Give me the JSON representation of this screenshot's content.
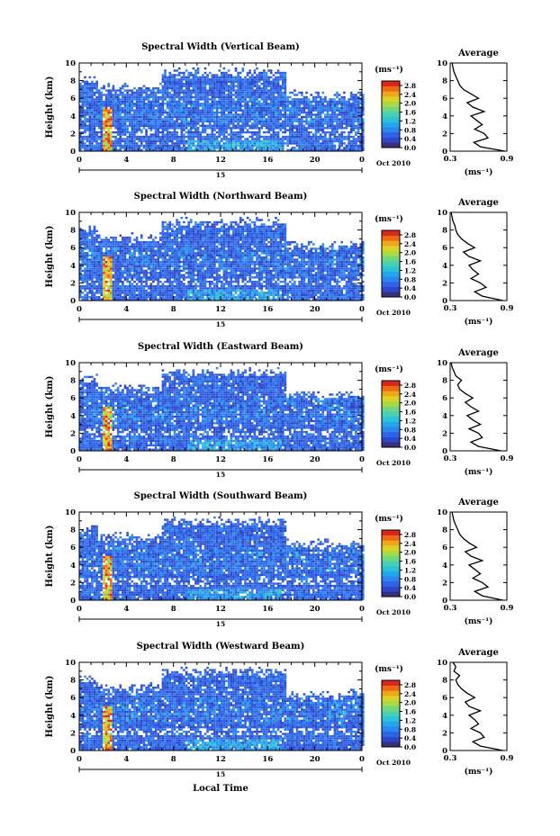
{
  "colors": {
    "colorbar": [
      "#3a2f7a",
      "#2e46c8",
      "#2f62e6",
      "#2c86ee",
      "#26a6ea",
      "#2ec2d6",
      "#48cfb4",
      "#72d67e",
      "#a8da48",
      "#dcd226",
      "#f0a61a",
      "#ec6a14",
      "#d8281c"
    ]
  },
  "chart_data": [
    {
      "type": "heatmap",
      "title": "Spectral Width (Vertical Beam)",
      "ylabel": "Height (km)",
      "xticks": [
        "0",
        "4",
        "8",
        "12",
        "16",
        "20",
        "0"
      ],
      "yticks": [
        "0",
        "2",
        "4",
        "6",
        "8",
        "10"
      ],
      "xlim": [
        0,
        24
      ],
      "ylim": [
        0,
        10
      ],
      "date_left": "15",
      "date_right": "Oct 2010",
      "colorbar": {
        "unit": "(ms⁻¹)",
        "ticks": [
          "0.0",
          "0.4",
          "0.8",
          "1.2",
          "1.6",
          "2.0",
          "2.4",
          "2.8"
        ],
        "range": [
          0,
          3.0
        ]
      },
      "profile": {
        "title": "Average",
        "xlabel": "(ms⁻¹)",
        "xticks": [
          "0.3",
          "0.9"
        ],
        "xlim": [
          0.3,
          0.9
        ],
        "ylim": [
          0,
          10
        ],
        "y": [
          0.0,
          0.5,
          1.0,
          1.5,
          2.0,
          2.5,
          3.0,
          3.5,
          4.0,
          4.5,
          5.0,
          5.5,
          6.0,
          6.5,
          7.0,
          7.5,
          8.0,
          8.5,
          9.0,
          9.5,
          10.0
        ],
        "x": [
          0.88,
          0.62,
          0.55,
          0.7,
          0.66,
          0.56,
          0.64,
          0.58,
          0.52,
          0.66,
          0.54,
          0.48,
          0.6,
          0.52,
          0.44,
          0.4,
          0.38,
          0.36,
          0.34,
          0.33,
          0.32
        ]
      }
    },
    {
      "type": "heatmap",
      "title": "Spectral Width (Northward Beam)",
      "ylabel": "Height (km)",
      "xticks": [
        "0",
        "4",
        "8",
        "12",
        "16",
        "20",
        "0"
      ],
      "yticks": [
        "0",
        "2",
        "4",
        "6",
        "8",
        "10"
      ],
      "xlim": [
        0,
        24
      ],
      "ylim": [
        0,
        10
      ],
      "date_left": "15",
      "date_right": "Oct 2010",
      "colorbar": {
        "unit": "(ms⁻¹)",
        "ticks": [
          "0.0",
          "0.4",
          "0.8",
          "1.2",
          "1.6",
          "2.0",
          "2.4",
          "2.8"
        ],
        "range": [
          0,
          3.0
        ]
      },
      "profile": {
        "title": "Average",
        "xlabel": "(ms⁻¹)",
        "xticks": [
          "0.3",
          "0.9"
        ],
        "xlim": [
          0.3,
          0.9
        ],
        "ylim": [
          0,
          10
        ],
        "y": [
          0.0,
          0.5,
          1.0,
          1.5,
          2.0,
          2.5,
          3.0,
          3.5,
          4.0,
          4.5,
          5.0,
          5.5,
          6.0,
          6.5,
          7.0,
          7.5,
          8.0,
          8.5,
          9.0,
          9.5,
          10.0
        ],
        "x": [
          0.86,
          0.64,
          0.56,
          0.68,
          0.62,
          0.52,
          0.6,
          0.54,
          0.5,
          0.62,
          0.5,
          0.44,
          0.56,
          0.48,
          0.42,
          0.38,
          0.36,
          0.35,
          0.33,
          0.32,
          0.31
        ]
      }
    },
    {
      "type": "heatmap",
      "title": "Spectral Width (Eastward Beam)",
      "ylabel": "Height (km)",
      "xticks": [
        "0",
        "4",
        "8",
        "12",
        "16",
        "20",
        "0"
      ],
      "yticks": [
        "0",
        "2",
        "4",
        "6",
        "8",
        "10"
      ],
      "xlim": [
        0,
        24
      ],
      "ylim": [
        0,
        10
      ],
      "date_left": "15",
      "date_right": "Oct 2010",
      "colorbar": {
        "unit": "(ms⁻¹)",
        "ticks": [
          "0.0",
          "0.4",
          "0.8",
          "1.2",
          "1.6",
          "2.0",
          "2.4",
          "2.8"
        ],
        "range": [
          0,
          3.0
        ]
      },
      "profile": {
        "title": "Average",
        "xlabel": "(ms⁻¹)",
        "xticks": [
          "0.3",
          "0.9"
        ],
        "xlim": [
          0.3,
          0.9
        ],
        "ylim": [
          0,
          10
        ],
        "y": [
          0.0,
          0.5,
          1.0,
          1.5,
          2.0,
          2.5,
          3.0,
          3.5,
          4.0,
          4.5,
          5.0,
          5.5,
          6.0,
          6.5,
          7.0,
          7.5,
          8.0,
          8.5,
          9.0,
          9.5,
          10.0
        ],
        "x": [
          0.84,
          0.6,
          0.52,
          0.64,
          0.6,
          0.5,
          0.62,
          0.54,
          0.48,
          0.6,
          0.52,
          0.46,
          0.54,
          0.46,
          0.4,
          0.38,
          0.42,
          0.36,
          0.34,
          0.32,
          0.31
        ]
      }
    },
    {
      "type": "heatmap",
      "title": "Spectral Width (Southward Beam)",
      "ylabel": "Height (km)",
      "xticks": [
        "0",
        "4",
        "8",
        "12",
        "16",
        "20",
        "0"
      ],
      "yticks": [
        "0",
        "2",
        "4",
        "6",
        "8",
        "10"
      ],
      "xlim": [
        0,
        24
      ],
      "ylim": [
        0,
        10
      ],
      "date_left": "15",
      "date_right": "Oct 2010",
      "colorbar": {
        "unit": "(ms⁻¹)",
        "ticks": [
          "0.0",
          "0.4",
          "0.8",
          "1.2",
          "1.6",
          "2.0",
          "2.4",
          "2.8"
        ],
        "range": [
          0,
          3.0
        ]
      },
      "profile": {
        "title": "Average",
        "xlabel": "(ms⁻¹)",
        "xticks": [
          "0.3",
          "0.9"
        ],
        "xlim": [
          0.3,
          0.9
        ],
        "ylim": [
          0,
          10
        ],
        "y": [
          0.0,
          0.5,
          1.0,
          1.5,
          2.0,
          2.5,
          3.0,
          3.5,
          4.0,
          4.5,
          5.0,
          5.5,
          6.0,
          6.5,
          7.0,
          7.5,
          8.0,
          8.5,
          9.0,
          9.5,
          10.0
        ],
        "x": [
          0.86,
          0.64,
          0.56,
          0.7,
          0.64,
          0.54,
          0.62,
          0.56,
          0.5,
          0.64,
          0.52,
          0.46,
          0.58,
          0.5,
          0.44,
          0.4,
          0.38,
          0.36,
          0.34,
          0.33,
          0.32
        ]
      }
    },
    {
      "type": "heatmap",
      "title": "Spectral Width (Westward Beam)",
      "ylabel": "Height (km)",
      "xticks": [
        "0",
        "4",
        "8",
        "12",
        "16",
        "20",
        "0"
      ],
      "yticks": [
        "0",
        "2",
        "4",
        "6",
        "8",
        "10"
      ],
      "xlim": [
        0,
        24
      ],
      "ylim": [
        0,
        10
      ],
      "date_left": "15",
      "date_right": "Oct 2010",
      "colorbar": {
        "unit": "(ms⁻¹)",
        "ticks": [
          "0.0",
          "0.4",
          "0.8",
          "1.2",
          "1.6",
          "2.0",
          "2.4",
          "2.8"
        ],
        "range": [
          0,
          3.0
        ]
      },
      "profile": {
        "title": "Average",
        "xlabel": "(ms⁻¹)",
        "xticks": [
          "0.3",
          "0.9"
        ],
        "xlim": [
          0.3,
          0.9
        ],
        "ylim": [
          0,
          10
        ],
        "y": [
          0.0,
          0.5,
          1.0,
          1.5,
          2.0,
          2.5,
          3.0,
          3.5,
          4.0,
          4.5,
          5.0,
          5.5,
          6.0,
          6.5,
          7.0,
          7.5,
          8.0,
          8.5,
          9.0,
          9.5,
          10.0
        ],
        "x": [
          0.86,
          0.62,
          0.54,
          0.66,
          0.62,
          0.52,
          0.6,
          0.56,
          0.5,
          0.62,
          0.5,
          0.46,
          0.56,
          0.48,
          0.42,
          0.38,
          0.36,
          0.4,
          0.34,
          0.36,
          0.33
        ]
      }
    }
  ],
  "xlabel": "Local Time"
}
